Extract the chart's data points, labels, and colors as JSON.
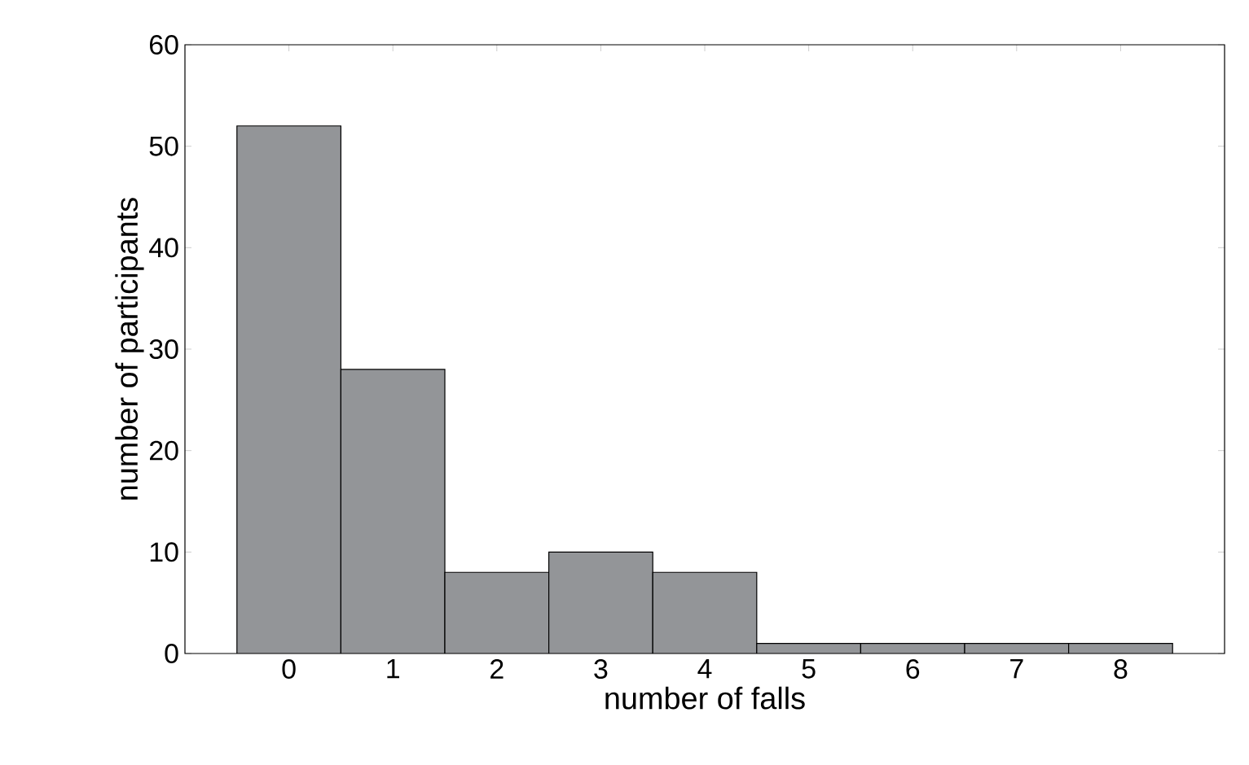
{
  "chart_data": {
    "type": "bar",
    "xlabel": "number of falls",
    "ylabel": "number of participants",
    "categories": [
      "0",
      "1",
      "2",
      "3",
      "4",
      "5",
      "6",
      "7",
      "8"
    ],
    "values": [
      52,
      28,
      8,
      10,
      8,
      1,
      1,
      1,
      1
    ],
    "color": "#939598",
    "ylim": [
      0,
      60
    ],
    "yticks": [
      0,
      10,
      20,
      30,
      40,
      50,
      60
    ]
  }
}
